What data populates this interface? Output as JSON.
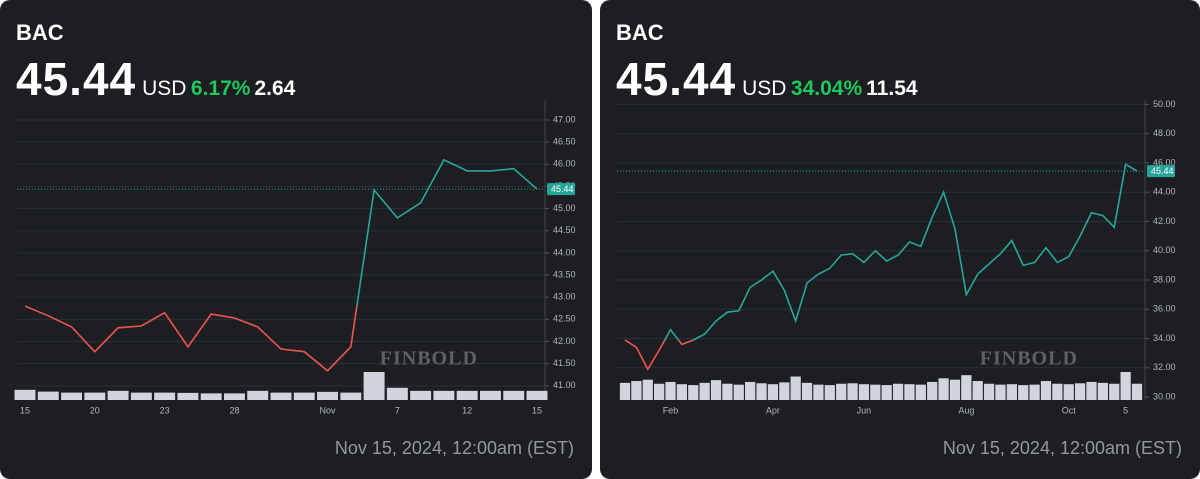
{
  "chart_data": [
    {
      "type": "line",
      "title": "BAC",
      "price": "45.44",
      "currency": "USD",
      "change_percent": "6.17%",
      "change": "2.64",
      "timestamp": "Nov 15, 2024, 12:00am (EST)",
      "watermark": "FINBOLD",
      "categories": [
        "15",
        null,
        null,
        "20",
        null,
        null,
        "23",
        null,
        null,
        "28",
        null,
        null,
        null,
        "Nov",
        null,
        null,
        "7",
        null,
        null,
        "12",
        null,
        null,
        "15"
      ],
      "values": [
        42.8,
        42.58,
        42.33,
        41.77,
        42.31,
        42.35,
        42.65,
        41.88,
        42.62,
        42.53,
        42.33,
        41.83,
        41.77,
        41.34,
        41.88,
        45.42,
        44.79,
        45.13,
        46.1,
        45.85,
        45.85,
        45.9,
        45.44
      ],
      "volume": [
        40,
        33,
        29,
        29,
        36,
        29,
        29,
        28,
        26,
        26,
        36,
        29,
        29,
        32,
        29,
        110,
        48,
        36,
        36,
        36,
        36,
        36,
        36
      ],
      "ylim": [
        40.68,
        47.45
      ],
      "yticks": [
        {
          "value": 41,
          "label": "41.00"
        },
        {
          "value": 41.5,
          "label": "41.50"
        },
        {
          "value": 42,
          "label": "42.00"
        },
        {
          "value": 42.5,
          "label": "42.50"
        },
        {
          "value": 43,
          "label": "43.00"
        },
        {
          "value": 43.5,
          "label": "43.50"
        },
        {
          "value": 44,
          "label": "44.00"
        },
        {
          "value": 44.5,
          "label": "44.50"
        },
        {
          "value": 45,
          "label": "45.00"
        },
        {
          "value": 45.5,
          "label": "45.50"
        },
        {
          "value": 46,
          "label": "46.00"
        },
        {
          "value": 46.5,
          "label": "46.50"
        },
        {
          "value": 47,
          "label": "47.00"
        }
      ],
      "grid": true,
      "up_color": "#26a69a",
      "down_color": "#ef5350",
      "volume_color": "#d1d4dc",
      "change_color": "#22c55e"
    },
    {
      "type": "line",
      "title": "BAC",
      "price": "45.44",
      "currency": "USD",
      "change_percent": "34.04%",
      "change": "11.54",
      "timestamp": "Nov 15, 2024, 12:00am (EST)",
      "watermark": "FINBOLD",
      "categories": [
        null,
        null,
        null,
        null,
        "Feb",
        null,
        null,
        null,
        null,
        null,
        null,
        null,
        null,
        "Apr",
        null,
        null,
        null,
        null,
        null,
        null,
        null,
        "Jun",
        null,
        null,
        null,
        null,
        null,
        null,
        null,
        null,
        "Aug",
        null,
        null,
        null,
        null,
        null,
        null,
        null,
        null,
        "Oct",
        null,
        null,
        null,
        null,
        "5",
        null
      ],
      "values": [
        33.9,
        33.4,
        31.9,
        33.2,
        34.6,
        33.6,
        33.9,
        34.3,
        35.2,
        35.8,
        35.9,
        37.5,
        38.0,
        38.6,
        37.3,
        35.2,
        37.8,
        38.4,
        38.8,
        39.7,
        39.8,
        39.2,
        40.0,
        39.3,
        39.7,
        40.6,
        40.3,
        42.3,
        44.0,
        41.5,
        37.0,
        38.4,
        39.1,
        39.8,
        40.7,
        39.0,
        39.2,
        40.2,
        39.2,
        39.6,
        41.0,
        42.6,
        42.4,
        41.6,
        45.9,
        45.44
      ],
      "volume": [
        38,
        42,
        45,
        36,
        40,
        35,
        33,
        38,
        44,
        36,
        34,
        40,
        37,
        35,
        39,
        52,
        38,
        34,
        33,
        36,
        37,
        35,
        34,
        33,
        36,
        35,
        34,
        40,
        48,
        45,
        55,
        42,
        36,
        34,
        35,
        33,
        34,
        42,
        36,
        35,
        37,
        40,
        38,
        36,
        62,
        36
      ],
      "ylim": [
        29.8,
        50.3
      ],
      "yticks": [
        {
          "value": 30,
          "label": "30.00"
        },
        {
          "value": 32,
          "label": "32.00"
        },
        {
          "value": 34,
          "label": "34.00"
        },
        {
          "value": 36,
          "label": "36.00"
        },
        {
          "value": 38,
          "label": "38.00"
        },
        {
          "value": 40,
          "label": "40.00"
        },
        {
          "value": 42,
          "label": "42.00"
        },
        {
          "value": 44,
          "label": "44.00"
        },
        {
          "value": 46,
          "label": "46.00"
        },
        {
          "value": 48,
          "label": "48.00"
        },
        {
          "value": 50,
          "label": "50.00"
        }
      ],
      "grid": true,
      "up_color": "#26a69a",
      "down_color": "#ef5350",
      "volume_color": "#d1d4dc",
      "change_color": "#22c55e"
    }
  ]
}
